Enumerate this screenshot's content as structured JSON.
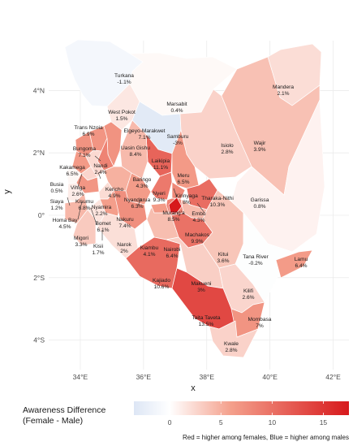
{
  "chart_data": {
    "type": "map",
    "xlabel": "x",
    "ylabel": "y",
    "xlim": [
      33.0,
      42.5
    ],
    "ylim": [
      -4.95,
      5.6
    ],
    "x_ticks": [
      {
        "value": 34,
        "label": "34°E"
      },
      {
        "value": 36,
        "label": "36°E"
      },
      {
        "value": 38,
        "label": "38°E"
      },
      {
        "value": 40,
        "label": "40°E"
      },
      {
        "value": 42,
        "label": "42°E"
      }
    ],
    "y_ticks": [
      {
        "value": 4,
        "label": "4°N"
      },
      {
        "value": 2,
        "label": "2°N"
      },
      {
        "value": 0,
        "label": "0°"
      },
      {
        "value": -2,
        "label": "2°S"
      },
      {
        "value": -4,
        "label": "4°S"
      }
    ],
    "legend": {
      "title_line1": "Awareness Difference",
      "title_line2": "(Female - Male)",
      "range": [
        -3.5,
        17.5
      ],
      "ticks": [
        0,
        5,
        10,
        15
      ],
      "low_color": "#dde6f5",
      "mid_color": "#ffffff",
      "high_color": "#d7191c"
    },
    "caption": "Red = higher among females, Blue = higher among males",
    "counties": [
      {
        "name": "Turkana",
        "value": -1.1,
        "label": "-1.1%"
      },
      {
        "name": "Marsabit",
        "value": 0.4,
        "label": "0.4%"
      },
      {
        "name": "Mandera",
        "value": 2.1,
        "label": "2.1%"
      },
      {
        "name": "Wajir",
        "value": 3.9,
        "label": "3.9%"
      },
      {
        "name": "West Pokot",
        "value": 1.5,
        "label": "1.5%"
      },
      {
        "name": "Samburu",
        "value": -3.0,
        "label": "-3%"
      },
      {
        "name": "Isiolo",
        "value": 2.8,
        "label": "2.8%"
      },
      {
        "name": "Trans Nzoia",
        "value": 6.9,
        "label": "6.9%"
      },
      {
        "name": "Elgeyo-Marakwet",
        "value": 7.1,
        "label": "7.1%"
      },
      {
        "name": "Bungoma",
        "value": 7.1,
        "label": "7.1%"
      },
      {
        "name": "Uasin Gishu",
        "value": 8.4,
        "label": "8.4%"
      },
      {
        "name": "Laikipia",
        "value": 11.1,
        "label": "11.1%"
      },
      {
        "name": "Kakamega",
        "value": 6.5,
        "label": "6.5%"
      },
      {
        "name": "Nandi",
        "value": 2.4,
        "label": "2.4%"
      },
      {
        "name": "Baringo",
        "value": 4.3,
        "label": "4.3%"
      },
      {
        "name": "Meru",
        "value": 6.5,
        "label": "6.5%"
      },
      {
        "name": "Busia",
        "value": 0.5,
        "label": "0.5%"
      },
      {
        "name": "Vihiga",
        "value": 2.6,
        "label": "2.6%"
      },
      {
        "name": "Kericho",
        "value": 4.9,
        "label": "4.9%"
      },
      {
        "name": "Garissa",
        "value": 0.8,
        "label": "0.8%"
      },
      {
        "name": "Siaya",
        "value": 1.2,
        "label": "1.2%"
      },
      {
        "name": "Kisumu",
        "value": 6.8,
        "label": "6.8%"
      },
      {
        "name": "Nyandarua",
        "value": 6.3,
        "label": "6.3%"
      },
      {
        "name": "Nyeri",
        "value": 9.3,
        "label": "9.3%"
      },
      {
        "name": "Kirinyaga",
        "value": 8.0,
        "label": "8%"
      },
      {
        "name": "Tharaka-Nithi",
        "value": 10.3,
        "label": "10.3%"
      },
      {
        "name": "Nyamira",
        "value": 2.2,
        "label": "2.2%"
      },
      {
        "name": "Murang'a",
        "value": 8.5,
        "label": "8.5%"
      },
      {
        "name": "Embu",
        "value": 4.3,
        "label": "4.3%"
      },
      {
        "name": "Homa Bay",
        "value": 4.5,
        "label": "4.5%"
      },
      {
        "name": "Bomet",
        "value": 6.1,
        "label": "6.1%"
      },
      {
        "name": "Nakuru",
        "value": 7.4,
        "label": "7.4%"
      },
      {
        "name": "Machakos",
        "value": 9.9,
        "label": "9.9%"
      },
      {
        "name": "Migori",
        "value": 3.3,
        "label": "3.3%"
      },
      {
        "name": "Kisii",
        "value": 1.7,
        "label": "1.7%"
      },
      {
        "name": "Narok",
        "value": 2.0,
        "label": "2%"
      },
      {
        "name": "Nairobi",
        "value": 17.5,
        "label": ""
      },
      {
        "name": "Kiambu",
        "value": 4.1,
        "label": "4.1%"
      },
      {
        "name": "Nairobi ",
        "value": 6.4,
        "label": "6.4%"
      },
      {
        "name": "Kitui",
        "value": 3.6,
        "label": "3.6%"
      },
      {
        "name": "Tana River",
        "value": -0.2,
        "label": "-0.2%"
      },
      {
        "name": "Lamu",
        "value": 6.4,
        "label": "6.4%"
      },
      {
        "name": "Kajiado",
        "value": 10.6,
        "label": "10.6%"
      },
      {
        "name": "Makueni",
        "value": 3.0,
        "label": "3%"
      },
      {
        "name": "Kilifi",
        "value": 2.6,
        "label": "2.6%"
      },
      {
        "name": "Taita Taveta",
        "value": 13.5,
        "label": "13.5%"
      },
      {
        "name": "Mombasa",
        "value": 7.0,
        "label": "7%"
      },
      {
        "name": "Kwale",
        "value": 2.8,
        "label": "2.8%"
      }
    ]
  }
}
